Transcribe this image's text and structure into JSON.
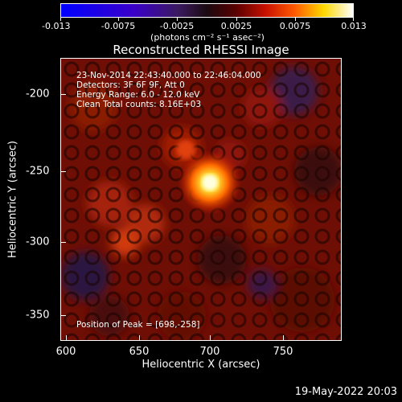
{
  "colorbar": {
    "ticks": [
      "-0.013",
      "-0.0075",
      "-0.0025",
      "0.0025",
      "0.0075",
      "0.013"
    ],
    "units": "(photons cm⁻² s⁻¹ asec⁻²)"
  },
  "title": "Reconstructed RHESSI Image",
  "info": {
    "line1": "23-Nov-2014 22:43:40.000 to 22:46:04.000",
    "line2": "Detectors: 3F 6F 9F, Att 0",
    "line3": "Energy Range: 6.0 - 12.0 keV",
    "line4": "Clean     Total counts: 8.16E+03",
    "peak": "Position of Peak = [698,-258]"
  },
  "axes": {
    "xlabel": "Heliocentric X (arcsec)",
    "ylabel": "Heliocentric Y (arcsec)",
    "xticks": [
      "600",
      "650",
      "700",
      "750"
    ],
    "yticks": [
      "-200",
      "-250",
      "-300",
      "-350"
    ]
  },
  "footer": "19-May-2022 20:03"
}
